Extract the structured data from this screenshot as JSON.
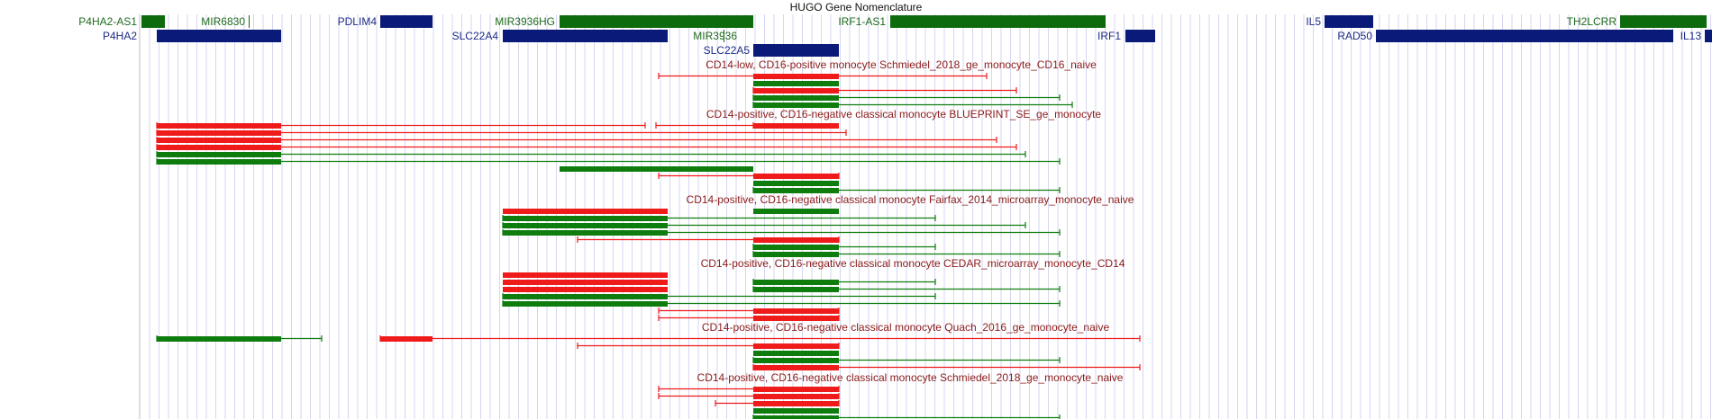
{
  "track_title": "HUGO Gene Nomenclature",
  "colors": {
    "grid": "#d6d6f2",
    "axis": "#bfbfbf",
    "gene_green": "#0d6b0d",
    "gene_navy": "#0a1a78",
    "label_green": "#1e6b1e",
    "label_navy": "#1d2a86",
    "red": "#ef1b1b",
    "green": "#0e7d0e",
    "panel_title": "#8b1a1a"
  },
  "genes": [
    {
      "name": "P4HA2-AS1",
      "strand": "green",
      "row": 0
    },
    {
      "name": "MIR6830",
      "strand": "green",
      "row": 0
    },
    {
      "name": "PDLIM4",
      "strand": "navy",
      "row": 0
    },
    {
      "name": "MIR3936HG",
      "strand": "green",
      "row": 0
    },
    {
      "name": "IRF1-AS1",
      "strand": "green",
      "row": 0
    },
    {
      "name": "IL5",
      "strand": "navy",
      "row": 0
    },
    {
      "name": "TH2LCRR",
      "strand": "green",
      "row": 0
    },
    {
      "name": "P4HA2",
      "strand": "navy",
      "row": 1
    },
    {
      "name": "SLC22A4",
      "strand": "navy",
      "row": 1
    },
    {
      "name": "MIR3936",
      "strand": "green",
      "row": 1
    },
    {
      "name": "IRF1",
      "strand": "navy",
      "row": 1
    },
    {
      "name": "RAD50",
      "strand": "navy",
      "row": 1
    },
    {
      "name": "IL13",
      "strand": "navy",
      "row": 1
    },
    {
      "name": "SLC22A5",
      "strand": "navy",
      "row": 2
    }
  ],
  "panels": [
    {
      "title": "CD14-low, CD16-positive monocyte Schmiedel_2018_ge_monocyte_CD16_naive"
    },
    {
      "title": "CD14-positive, CD16-negative classical monocyte BLUEPRINT_SE_ge_monocyte"
    },
    {
      "title": "CD14-positive, CD16-negative classical monocyte Fairfax_2014_microarray_monocyte_naive"
    },
    {
      "title": "CD14-positive, CD16-negative classical monocyte CEDAR_microarray_monocyte_CD14"
    },
    {
      "title": "CD14-positive, CD16-negative classical monocyte Quach_2016_ge_monocyte_naive"
    },
    {
      "title": "CD14-positive, CD16-negative classical monocyte Schmiedel_2018_ge_monocyte_naive"
    }
  ]
}
